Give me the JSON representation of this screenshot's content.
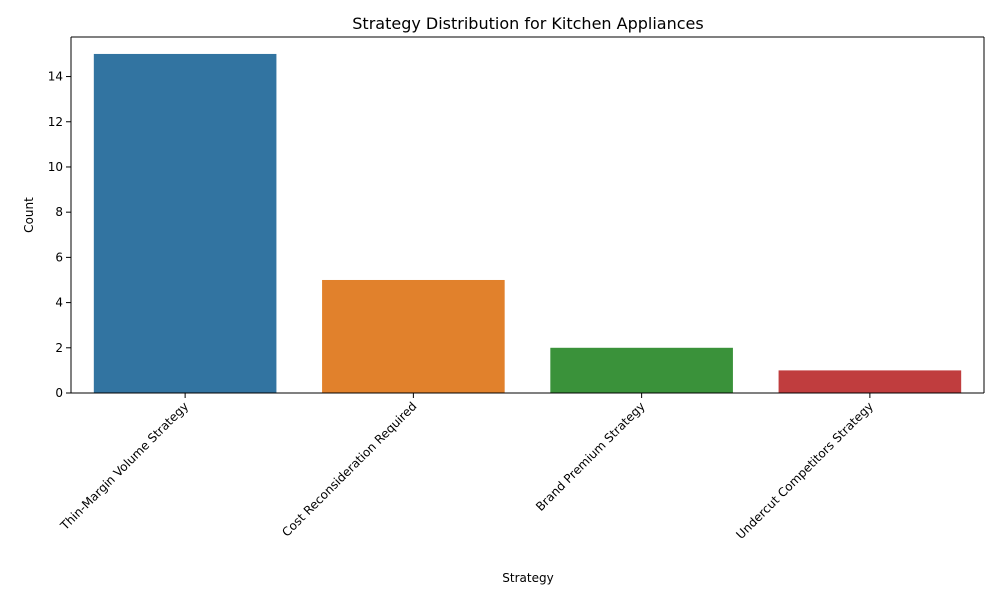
{
  "chart_data": {
    "type": "bar",
    "title": "Strategy Distribution for Kitchen Appliances",
    "xlabel": "Strategy",
    "ylabel": "Count",
    "categories": [
      "Thin-Margin Volume Strategy",
      "Cost Reconsideration Required",
      "Brand Premium Strategy",
      "Undercut Competitors Strategy"
    ],
    "values": [
      15,
      5,
      2,
      1
    ],
    "colors": [
      "#3274a1",
      "#e1812c",
      "#3a923a",
      "#c03d3e"
    ],
    "ylim": [
      0,
      15.75
    ],
    "yticks": [
      0,
      2,
      4,
      6,
      8,
      10,
      12,
      14
    ],
    "grid": false,
    "legend": "none"
  }
}
